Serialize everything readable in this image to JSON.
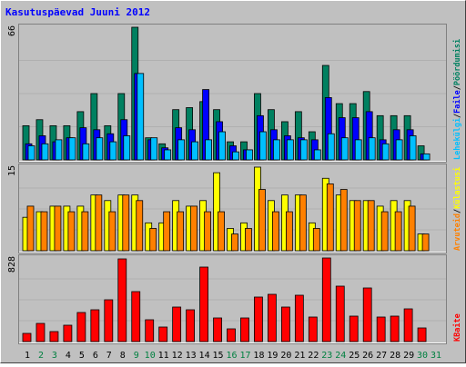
{
  "chart_data": {
    "type": "bar",
    "title": "Kasutuspäevad Juuni 2012",
    "categories": [
      "1",
      "2",
      "3",
      "4",
      "5",
      "6",
      "7",
      "8",
      "9",
      "10",
      "11",
      "12",
      "13",
      "14",
      "15",
      "16",
      "17",
      "18",
      "19",
      "20",
      "21",
      "22",
      "23",
      "24",
      "25",
      "26",
      "27",
      "28",
      "29",
      "30",
      "31"
    ],
    "category_colors": [
      "#000000",
      "#008040",
      "#008040",
      "#000000",
      "#000000",
      "#000000",
      "#000000",
      "#000000",
      "#008040",
      "#008040",
      "#000000",
      "#000000",
      "#000000",
      "#000000",
      "#000000",
      "#008040",
      "#008040",
      "#000000",
      "#000000",
      "#000000",
      "#000000",
      "#000000",
      "#008040",
      "#008040",
      "#000000",
      "#000000",
      "#000000",
      "#000000",
      "#000000",
      "#008040",
      "#008040"
    ],
    "legend_separator": "/",
    "panels": [
      {
        "ylim": [
          0,
          66
        ],
        "yticks": [
          66
        ],
        "series": [
          {
            "name": "Pöördumisi",
            "color": "#008060",
            "values": [
              17,
              20,
              17,
              17,
              24,
              33,
              17,
              33,
              66,
              11,
              8,
              25,
              26,
              29,
              25,
              9,
              9,
              33,
              25,
              19,
              24,
              14,
              47,
              28,
              28,
              34,
              22,
              22,
              22,
              7,
              null
            ]
          },
          {
            "name": "Faile",
            "color": "#0000ff",
            "values": [
              8,
              12,
              9,
              11,
              16,
              15,
              13,
              20,
              43,
              10,
              6,
              16,
              15,
              35,
              19,
              7,
              5,
              22,
              15,
              12,
              11,
              10,
              31,
              21,
              21,
              24,
              10,
              15,
              15,
              3,
              null
            ]
          },
          {
            "name": "Lehekülgi",
            "color": "#00bfff",
            "values": [
              7,
              8,
              10,
              11,
              8,
              11,
              9,
              12,
              43,
              11,
              5,
              10,
              9,
              10,
              14,
              4,
              5,
              14,
              10,
              10,
              10,
              5,
              13,
              11,
              10,
              11,
              8,
              10,
              12,
              3,
              null
            ]
          }
        ]
      },
      {
        "ylim": [
          0,
          15
        ],
        "yticks": [
          15
        ],
        "series": [
          {
            "name": "Külastusi",
            "color": "#ffff00",
            "values": [
              6,
              7,
              8,
              8,
              8,
              10,
              9,
              10,
              10,
              5,
              5,
              9,
              8,
              9,
              14,
              4,
              5,
              15,
              9,
              10,
              10,
              5,
              13,
              10,
              9,
              9,
              8,
              9,
              9,
              3,
              null
            ]
          },
          {
            "name": "Arvuteid",
            "color": "#ff8000",
            "values": [
              8,
              7,
              8,
              7,
              7,
              10,
              7,
              10,
              9,
              4,
              7,
              7,
              8,
              7,
              7,
              3,
              4,
              11,
              7,
              7,
              10,
              4,
              12,
              11,
              9,
              9,
              7,
              7,
              8,
              3,
              null
            ]
          }
        ]
      },
      {
        "ylim": [
          0,
          828
        ],
        "yticks": [
          828
        ],
        "series": [
          {
            "name": "KBaite",
            "color": "#ff0000",
            "values": [
              81,
              180,
              99,
              162,
              288,
              315,
              414,
              819,
              495,
              216,
              144,
              342,
              315,
              738,
              234,
              126,
              234,
              441,
              468,
              342,
              459,
              243,
              828,
              549,
              252,
              531,
              243,
              252,
              324,
              135,
              null
            ]
          }
        ]
      }
    ]
  }
}
